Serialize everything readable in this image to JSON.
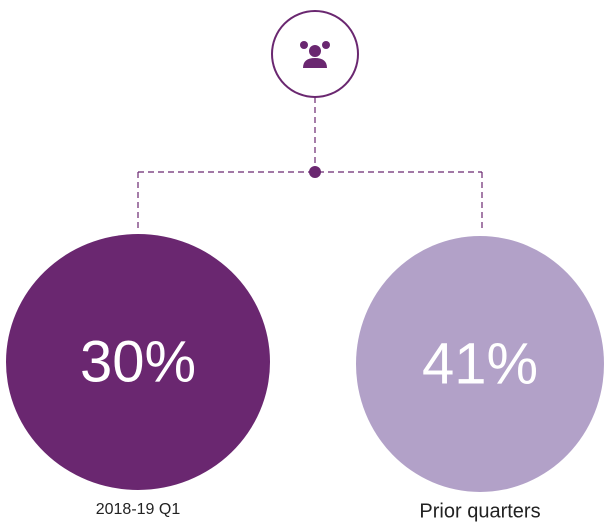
{
  "items": [
    {
      "value_label": "30%",
      "label": "2018-19 Q1",
      "color": "#6a2770"
    },
    {
      "value_label": "41%",
      "label": "Prior quarters",
      "color": "#b2a1c8"
    }
  ]
}
